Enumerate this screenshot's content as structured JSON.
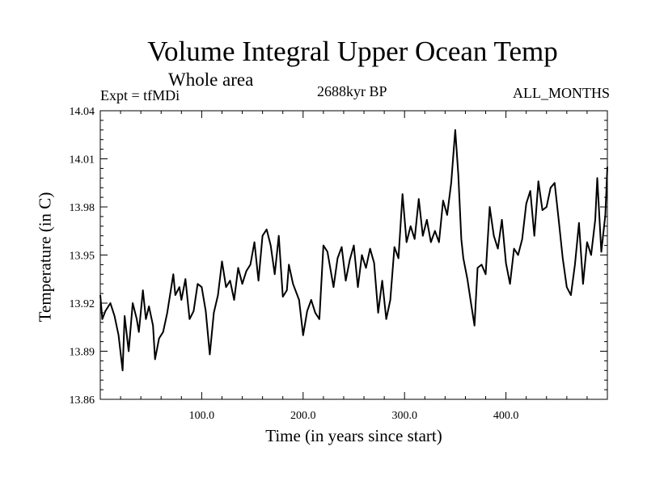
{
  "chart_data": {
    "type": "line",
    "title": "Volume Integral Upper Ocean Temp",
    "subtitle": "Whole area",
    "annotations": {
      "left": "Expt = tfMDi",
      "center": "2688kyr BP",
      "right": "ALL_MONTHS"
    },
    "xlabel": "Time (in years since start)",
    "ylabel": "Temperature (in C)",
    "xlim": [
      0,
      500
    ],
    "ylim": [
      13.86,
      14.04
    ],
    "xticks": [
      100,
      200,
      300,
      400
    ],
    "xtick_labels": [
      "100.0",
      "200.0",
      "300.0",
      "400.0"
    ],
    "yticks": [
      13.86,
      13.89,
      13.92,
      13.95,
      13.98,
      14.01,
      14.04
    ],
    "ytick_labels": [
      "13.86",
      "13.89",
      "13.92",
      "13.95",
      "13.98",
      "14.01",
      "14.04"
    ],
    "grid": false,
    "series": [
      {
        "name": "tfMDi",
        "x": [
          0,
          2,
          5,
          10,
          14,
          18,
          22,
          24,
          28,
          32,
          36,
          38,
          42,
          45,
          48,
          52,
          54,
          58,
          62,
          66,
          72,
          74,
          78,
          80,
          84,
          88,
          92,
          96,
          100,
          104,
          108,
          112,
          116,
          120,
          124,
          128,
          132,
          136,
          140,
          144,
          148,
          152,
          156,
          160,
          164,
          168,
          172,
          176,
          180,
          184,
          186,
          190,
          196,
          200,
          204,
          208,
          212,
          216,
          220,
          224,
          230,
          234,
          238,
          242,
          246,
          250,
          254,
          258,
          262,
          266,
          270,
          274,
          278,
          282,
          286,
          290,
          294,
          298,
          302,
          306,
          310,
          314,
          318,
          322,
          326,
          330,
          334,
          338,
          342,
          346,
          350,
          353,
          356,
          358,
          362,
          366,
          369,
          372,
          376,
          380,
          384,
          388,
          392,
          396,
          400,
          404,
          408,
          412,
          416,
          420,
          424,
          428,
          432,
          436,
          440,
          444,
          448,
          452,
          456,
          460,
          464,
          468,
          472,
          476,
          480,
          484,
          488,
          490,
          494,
          498,
          500
        ],
        "values": [
          13.925,
          13.91,
          13.915,
          13.92,
          13.912,
          13.9,
          13.878,
          13.912,
          13.89,
          13.92,
          13.91,
          13.902,
          13.928,
          13.91,
          13.918,
          13.906,
          13.885,
          13.898,
          13.902,
          13.914,
          13.938,
          13.925,
          13.93,
          13.922,
          13.935,
          13.91,
          13.915,
          13.932,
          13.93,
          13.915,
          13.888,
          13.914,
          13.925,
          13.946,
          13.93,
          13.934,
          13.922,
          13.942,
          13.932,
          13.94,
          13.944,
          13.958,
          13.934,
          13.962,
          13.966,
          13.956,
          13.938,
          13.962,
          13.924,
          13.928,
          13.944,
          13.932,
          13.922,
          13.9,
          13.915,
          13.922,
          13.914,
          13.91,
          13.956,
          13.952,
          13.93,
          13.948,
          13.955,
          13.934,
          13.947,
          13.956,
          13.93,
          13.95,
          13.942,
          13.954,
          13.945,
          13.914,
          13.934,
          13.91,
          13.922,
          13.955,
          13.948,
          13.988,
          13.958,
          13.968,
          13.96,
          13.985,
          13.962,
          13.972,
          13.958,
          13.965,
          13.958,
          13.984,
          13.975,
          13.995,
          14.028,
          14.0,
          13.96,
          13.948,
          13.935,
          13.918,
          13.906,
          13.942,
          13.944,
          13.938,
          13.98,
          13.962,
          13.954,
          13.972,
          13.945,
          13.932,
          13.954,
          13.95,
          13.96,
          13.982,
          13.99,
          13.962,
          13.996,
          13.978,
          13.98,
          13.992,
          13.995,
          13.972,
          13.948,
          13.93,
          13.925,
          13.944,
          13.97,
          13.932,
          13.958,
          13.95,
          13.972,
          13.998,
          13.952,
          13.975,
          14.005
        ]
      }
    ]
  }
}
